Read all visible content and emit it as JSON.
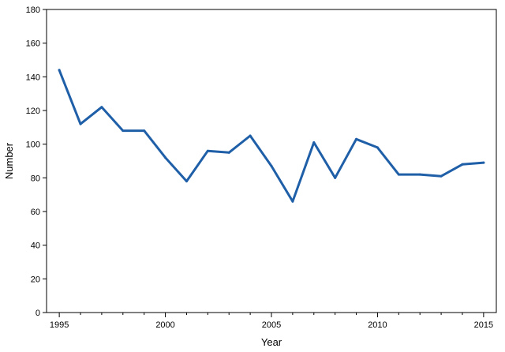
{
  "chart_data": {
    "type": "line",
    "xlabel": "Year",
    "ylabel": "Number",
    "xlim": [
      1994.4,
      2015.6
    ],
    "ylim": [
      0,
      180
    ],
    "x_ticks": [
      1995,
      2000,
      2005,
      2010,
      2015
    ],
    "y_ticks": [
      0,
      20,
      40,
      60,
      80,
      100,
      120,
      140,
      160,
      180
    ],
    "grid": false,
    "line_color": "#1f5fa8",
    "series": [
      {
        "x": [
          1995,
          1996,
          1997,
          1998,
          1999,
          2000,
          2001,
          2002,
          2003,
          2004,
          2005,
          2006,
          2007,
          2008,
          2009,
          2010,
          2011,
          2012,
          2013,
          2014,
          2015
        ],
        "values": [
          144,
          112,
          122,
          108,
          108,
          92,
          78,
          96,
          95,
          105,
          87,
          66,
          101,
          80,
          103,
          98,
          82,
          82,
          81,
          88,
          89
        ]
      }
    ]
  }
}
